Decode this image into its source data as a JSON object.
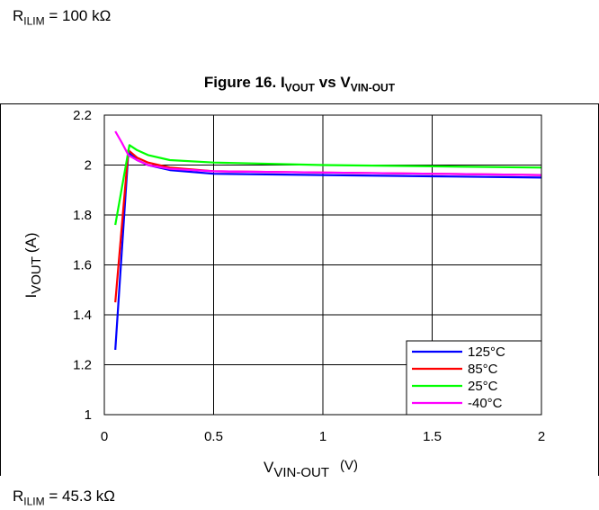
{
  "top_note": {
    "prefix": "R",
    "sub": "ILIM",
    "rest": " = 100 kΩ"
  },
  "figure_title": {
    "lead": "Figure 16. I",
    "sub1": "VOUT",
    "mid": " vs V",
    "sub2": "VIN-OUT"
  },
  "bottom_note": {
    "prefix": "R",
    "sub": "ILIM",
    "rest": " = 45.3 kΩ"
  },
  "chart_data": {
    "type": "line",
    "xlabel": {
      "main": "V",
      "sub": "VIN-OUT",
      "unit": "(V)"
    },
    "ylabel": {
      "main": "I",
      "sub": "VOUT",
      "unit": "(A)"
    },
    "xlim": [
      0,
      2
    ],
    "ylim": [
      1,
      2.2
    ],
    "xticks": [
      0,
      0.5,
      1,
      1.5,
      2
    ],
    "xtick_labels": [
      "0",
      "0.5",
      "1",
      "1.5",
      "2"
    ],
    "yticks": [
      1,
      1.2,
      1.4,
      1.6,
      1.8,
      2,
      2.2
    ],
    "ytick_labels": [
      "1",
      "1.2",
      "1.4",
      "1.6",
      "1.8",
      "2",
      "2.2"
    ],
    "grid": true,
    "legend_position": "bottom-right",
    "series": [
      {
        "name": "125°C",
        "color": "#0000ff",
        "points": [
          [
            0.05,
            1.26
          ],
          [
            0.11,
            2.05
          ],
          [
            0.15,
            2.02
          ],
          [
            0.2,
            2.0
          ],
          [
            0.3,
            1.98
          ],
          [
            0.5,
            1.965
          ],
          [
            1.0,
            1.96
          ],
          [
            1.5,
            1.955
          ],
          [
            2.0,
            1.95
          ]
        ]
      },
      {
        "name": "85°C",
        "color": "#ff0000",
        "points": [
          [
            0.05,
            1.45
          ],
          [
            0.11,
            2.06
          ],
          [
            0.15,
            2.03
          ],
          [
            0.2,
            2.01
          ],
          [
            0.3,
            1.99
          ],
          [
            0.5,
            1.975
          ],
          [
            1.0,
            1.97
          ],
          [
            1.5,
            1.965
          ],
          [
            2.0,
            1.96
          ]
        ]
      },
      {
        "name": "25°C",
        "color": "#00ff00",
        "points": [
          [
            0.05,
            1.76
          ],
          [
            0.115,
            2.08
          ],
          [
            0.15,
            2.06
          ],
          [
            0.2,
            2.04
          ],
          [
            0.3,
            2.02
          ],
          [
            0.5,
            2.01
          ],
          [
            1.0,
            2.0
          ],
          [
            1.5,
            1.995
          ],
          [
            2.0,
            1.99
          ]
        ]
      },
      {
        "name": "-40°C",
        "color": "#ff00ff",
        "points": [
          [
            0.05,
            2.135
          ],
          [
            0.08,
            2.09
          ],
          [
            0.11,
            2.04
          ],
          [
            0.15,
            2.02
          ],
          [
            0.2,
            2.0
          ],
          [
            0.3,
            1.985
          ],
          [
            0.5,
            1.975
          ],
          [
            1.0,
            1.97
          ],
          [
            1.5,
            1.965
          ],
          [
            2.0,
            1.96
          ]
        ]
      }
    ]
  }
}
